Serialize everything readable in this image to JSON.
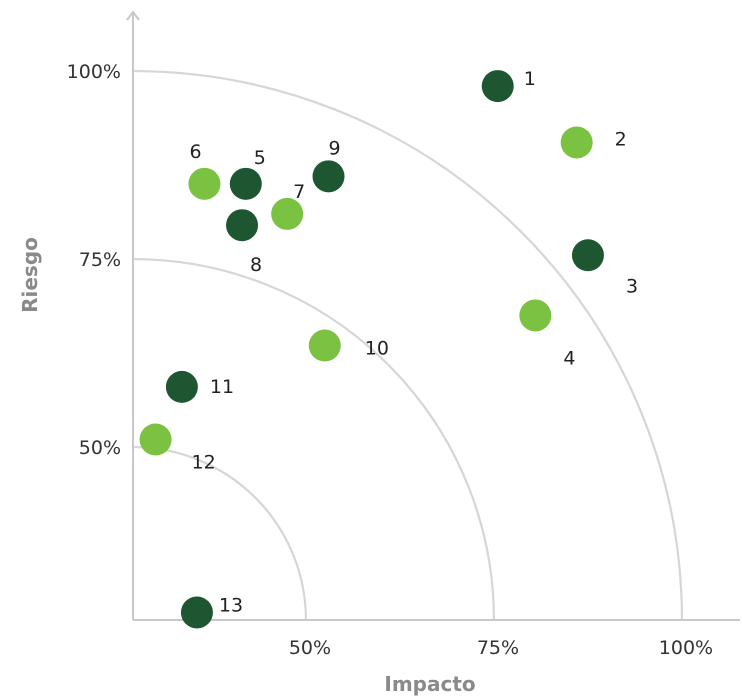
{
  "chart_data": {
    "type": "scatter",
    "xlabel": "Impacto",
    "ylabel": "Riesgo",
    "x_ticks": [
      {
        "value": 50,
        "label": "50%"
      },
      {
        "value": 75,
        "label": "75%"
      },
      {
        "value": 100,
        "label": "100%"
      }
    ],
    "y_ticks": [
      {
        "value": 50,
        "label": "50%"
      },
      {
        "value": 75,
        "label": "75%"
      },
      {
        "value": 100,
        "label": "100%"
      }
    ],
    "xlim": [
      27,
      103
    ],
    "ylim": [
      27,
      103
    ],
    "arcs": [
      50,
      75,
      100
    ],
    "grid": false,
    "legend": "none",
    "colors": {
      "dark": "#1e5631",
      "light": "#7bc242"
    },
    "points": [
      {
        "label": "1",
        "x": 75.5,
        "y": 98.0,
        "color": "dark"
      },
      {
        "label": "2",
        "x": 86.0,
        "y": 90.5,
        "color": "light"
      },
      {
        "label": "3",
        "x": 87.5,
        "y": 75.5,
        "color": "dark"
      },
      {
        "label": "4",
        "x": 80.5,
        "y": 67.5,
        "color": "light"
      },
      {
        "label": "5",
        "x": 42.0,
        "y": 85.0,
        "color": "dark"
      },
      {
        "label": "6",
        "x": 36.5,
        "y": 85.0,
        "color": "light"
      },
      {
        "label": "7",
        "x": 47.5,
        "y": 81.0,
        "color": "light"
      },
      {
        "label": "8",
        "x": 41.5,
        "y": 79.5,
        "color": "dark"
      },
      {
        "label": "9",
        "x": 53.0,
        "y": 86.0,
        "color": "dark"
      },
      {
        "label": "10",
        "x": 52.5,
        "y": 63.5,
        "color": "light"
      },
      {
        "label": "11",
        "x": 33.5,
        "y": 58.0,
        "color": "dark"
      },
      {
        "label": "12",
        "x": 30.0,
        "y": 51.0,
        "color": "light"
      },
      {
        "label": "13",
        "x": 35.5,
        "y": 28.0,
        "color": "dark"
      }
    ]
  }
}
